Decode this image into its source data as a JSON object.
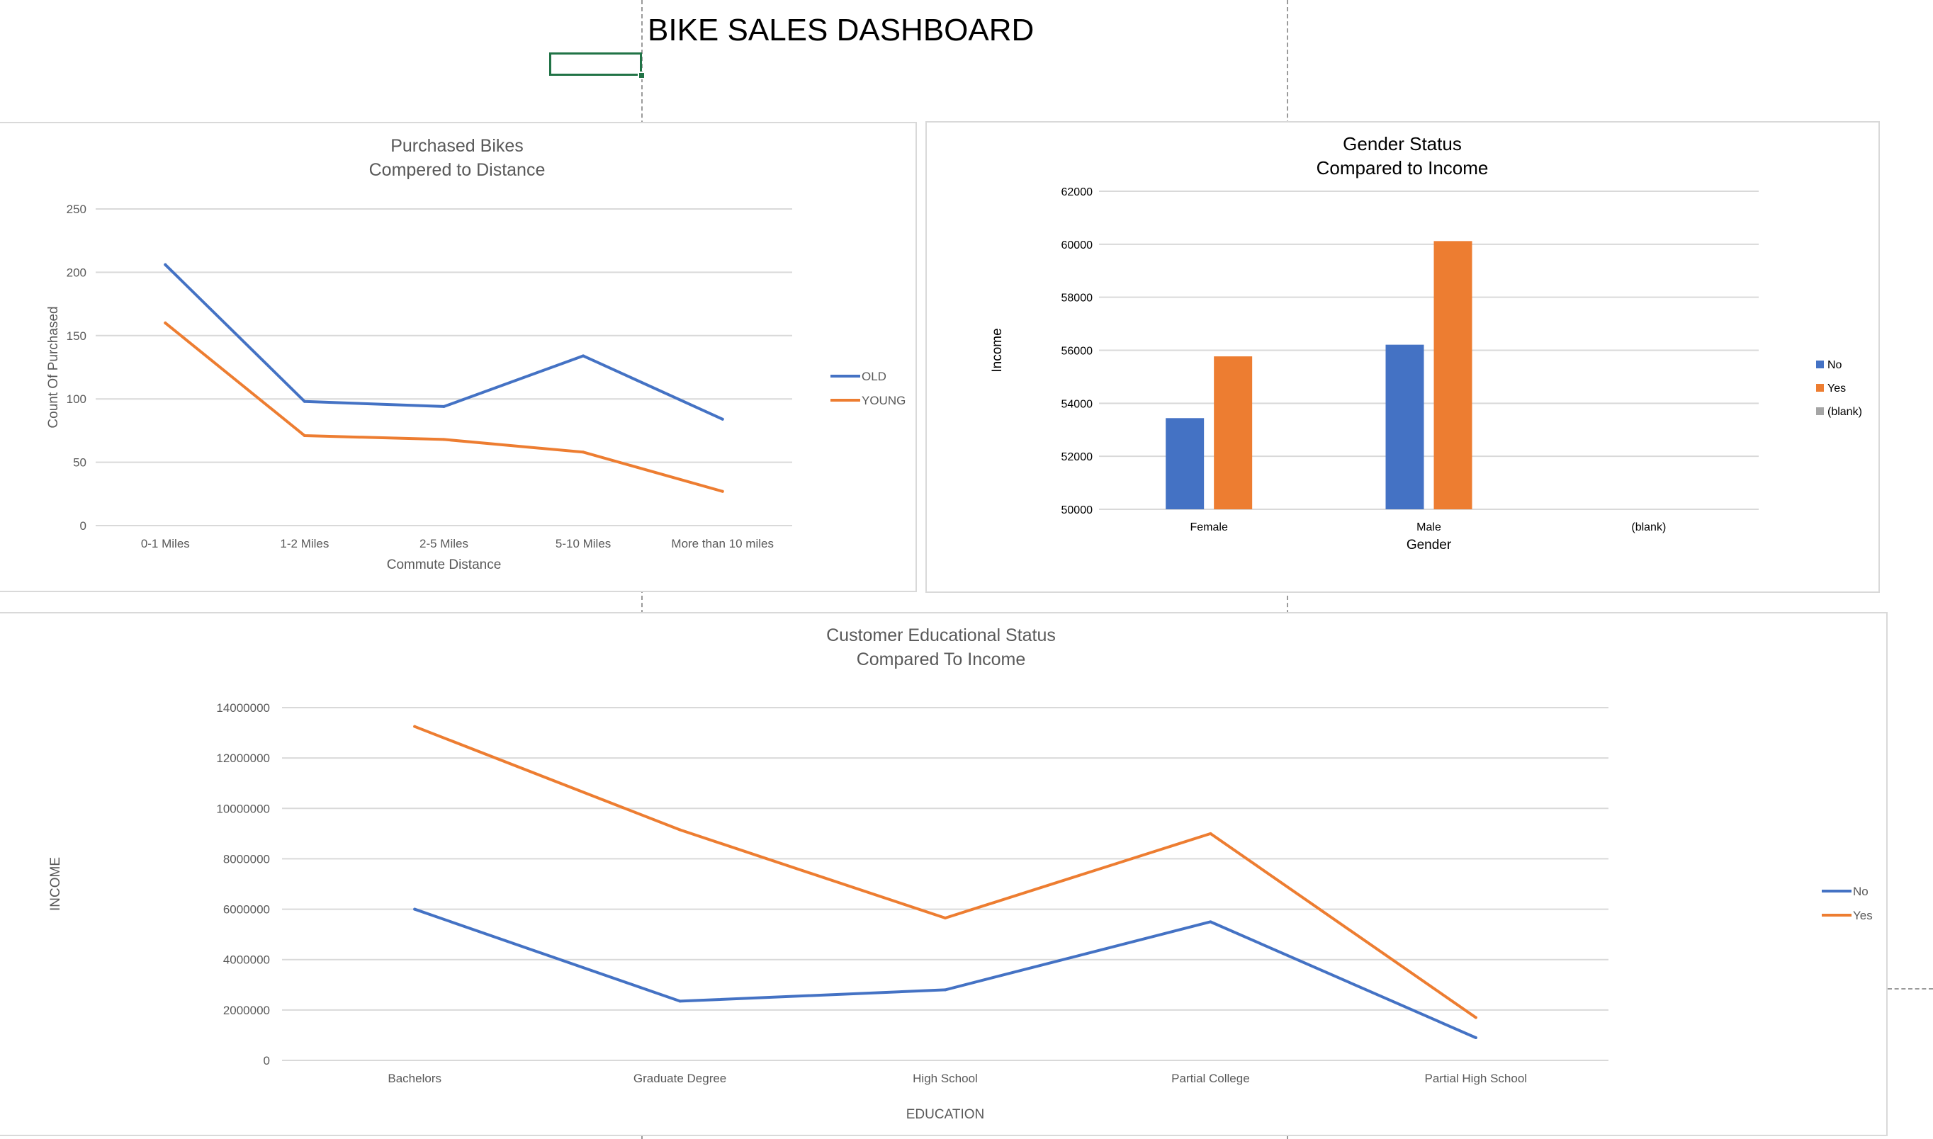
{
  "dashboard": {
    "title": "BIKE SALES DASHBOARD"
  },
  "colors": {
    "blue": "#4472c4",
    "orange": "#ed7d31",
    "gray": "#a5a5a5",
    "grid": "#d9d9d9"
  },
  "chart_data": [
    {
      "type": "line",
      "title": [
        "Purchased Bikes",
        "Compered to Distance"
      ],
      "xlabel": "Commute Distance",
      "ylabel": "Count Of Purchased",
      "categories": [
        "0-1 Miles",
        "1-2 Miles",
        "2-5 Miles",
        "5-10 Miles",
        "More than 10 miles"
      ],
      "ylim": [
        0,
        250
      ],
      "yticks": [
        "0",
        "50",
        "100",
        "150",
        "200",
        "250"
      ],
      "grid": true,
      "legend": "right",
      "series": [
        {
          "name": "OLD",
          "color": "#4472c4",
          "values": [
            206,
            98,
            94,
            134,
            84
          ]
        },
        {
          "name": "YOUNG",
          "color": "#ed7d31",
          "values": [
            160,
            71,
            68,
            58,
            27
          ]
        }
      ]
    },
    {
      "type": "bar",
      "title": [
        "Gender Status",
        "Compared to Income"
      ],
      "xlabel": "Gender",
      "ylabel": "Income",
      "categories": [
        "Female",
        "Male",
        "(blank)"
      ],
      "ylim": [
        50000,
        62000
      ],
      "yticks": [
        "50000",
        "52000",
        "54000",
        "56000",
        "58000",
        "60000",
        "62000"
      ],
      "grid": true,
      "legend": "right",
      "series": [
        {
          "name": "No",
          "color": "#4472c4",
          "values": [
            53440,
            56210,
            null
          ]
        },
        {
          "name": "Yes",
          "color": "#ed7d31",
          "values": [
            55770,
            60120,
            null
          ]
        },
        {
          "name": "(blank)",
          "color": "#a5a5a5",
          "values": [
            null,
            null,
            null
          ]
        }
      ]
    },
    {
      "type": "line",
      "title": [
        "Customer  Educational Status",
        "Compared To Income"
      ],
      "xlabel": "EDUCATION",
      "ylabel": "INCOME",
      "categories": [
        "Bachelors",
        "Graduate Degree",
        "High School",
        "Partial College",
        "Partial High School"
      ],
      "ylim": [
        0,
        14000000
      ],
      "yticks": [
        "0",
        "2000000",
        "4000000",
        "6000000",
        "8000000",
        "10000000",
        "12000000",
        "14000000"
      ],
      "grid": true,
      "legend": "right",
      "series": [
        {
          "name": "No",
          "color": "#4472c4",
          "values": [
            6000000,
            2350000,
            2800000,
            5500000,
            900000
          ]
        },
        {
          "name": "Yes",
          "color": "#ed7d31",
          "values": [
            13250000,
            9150000,
            5650000,
            9000000,
            1700000
          ]
        }
      ]
    }
  ]
}
